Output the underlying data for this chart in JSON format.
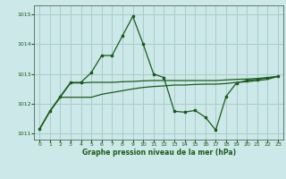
{
  "background_color": "#cce8e8",
  "grid_color": "#aacccc",
  "line_color": "#1a5c1a",
  "title": "Graphe pression niveau de la mer (hPa)",
  "xlim": [
    -0.5,
    23.5
  ],
  "ylim": [
    1010.8,
    1015.3
  ],
  "yticks": [
    1011,
    1012,
    1013,
    1014,
    1015
  ],
  "xticks": [
    0,
    1,
    2,
    3,
    4,
    5,
    6,
    7,
    8,
    9,
    10,
    11,
    12,
    13,
    14,
    15,
    16,
    17,
    18,
    19,
    20,
    21,
    22,
    23
  ],
  "line1_x": [
    0,
    1,
    2,
    3,
    4,
    5,
    6,
    7,
    8,
    9,
    10,
    11,
    12,
    13,
    14,
    15,
    16,
    17,
    18,
    19,
    20,
    21,
    22,
    23
  ],
  "line1_y": [
    1011.15,
    1011.75,
    1012.25,
    1012.72,
    1012.72,
    1013.05,
    1013.62,
    1013.62,
    1014.28,
    1014.93,
    1014.0,
    1013.0,
    1012.88,
    1011.75,
    1011.72,
    1011.78,
    1011.55,
    1011.12,
    1012.25,
    1012.7,
    1012.78,
    1012.82,
    1012.87,
    1012.92
  ],
  "line2_x": [
    0,
    1,
    2,
    3,
    4,
    5,
    6,
    7,
    8,
    9,
    10,
    11,
    12,
    13,
    14,
    15,
    16,
    17,
    18,
    19,
    20,
    21,
    22,
    23
  ],
  "line2_y": [
    1011.15,
    1011.75,
    1012.22,
    1012.7,
    1012.7,
    1012.72,
    1012.72,
    1012.72,
    1012.74,
    1012.75,
    1012.77,
    1012.78,
    1012.78,
    1012.78,
    1012.78,
    1012.78,
    1012.78,
    1012.78,
    1012.8,
    1012.82,
    1012.83,
    1012.85,
    1012.88,
    1012.92
  ],
  "line3_x": [
    0,
    1,
    2,
    3,
    4,
    5,
    6,
    7,
    8,
    9,
    10,
    11,
    12,
    13,
    14,
    15,
    16,
    17,
    18,
    19,
    20,
    21,
    22,
    23
  ],
  "line3_y": [
    1011.15,
    1011.75,
    1012.22,
    1012.22,
    1012.22,
    1012.22,
    1012.32,
    1012.38,
    1012.44,
    1012.5,
    1012.55,
    1012.58,
    1012.6,
    1012.63,
    1012.63,
    1012.65,
    1012.66,
    1012.66,
    1012.68,
    1012.72,
    1012.74,
    1012.78,
    1012.82,
    1012.92
  ]
}
